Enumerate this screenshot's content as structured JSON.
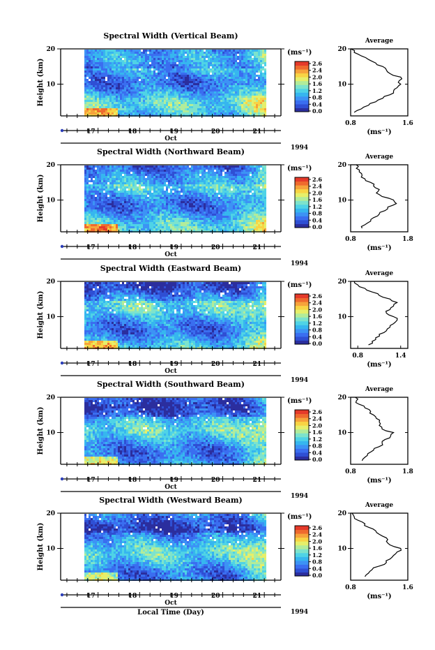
{
  "figure": {
    "xlabel": "Local Time (Day)",
    "date_label": "Oct",
    "year_label": "1994",
    "ylabel": "Height (km)",
    "unit_label": "(ms⁻¹)",
    "profile_title": "Average",
    "profile_xlabel": "(ms⁻¹)"
  },
  "colorbar": {
    "ticks": [
      "2.6",
      "2.4",
      "2.0",
      "1.6",
      "1.2",
      "0.8",
      "0.4",
      "0.0"
    ],
    "colors": [
      "#2b2e9e",
      "#2f4fd4",
      "#3a6ef0",
      "#3c93f5",
      "#36b6ef",
      "#4fd3e6",
      "#7de3cc",
      "#b2ec9a",
      "#e6ef6a",
      "#f8d444",
      "#f6a33b",
      "#ef6a2e",
      "#e53a2a"
    ]
  },
  "chart_data": [
    {
      "type": "heatmap",
      "title": "Spectral Width (Vertical Beam)",
      "x_ticks": [
        "17",
        "18",
        "19",
        "20",
        "21"
      ],
      "x_range_day": [
        16.1,
        21.4
      ],
      "y_ticks": [
        "20",
        "10"
      ],
      "y_range_km": [
        1,
        20
      ],
      "value_range": [
        0.0,
        2.8
      ],
      "profile": {
        "title": "Average",
        "x_ticks": [
          "0.8",
          "1.6"
        ],
        "x_range": [
          0.8,
          1.6
        ],
        "y_ticks": [
          "20",
          "10"
        ],
        "heights_km": [
          2,
          3,
          4,
          5,
          6,
          7,
          8,
          9,
          10,
          11,
          12,
          13,
          14,
          15,
          16,
          17,
          18,
          19,
          20
        ],
        "values": [
          0.85,
          0.95,
          1.05,
          1.15,
          1.25,
          1.35,
          1.4,
          1.45,
          1.5,
          1.48,
          1.5,
          1.35,
          1.3,
          1.25,
          1.15,
          1.05,
          0.95,
          0.85,
          0.8
        ]
      }
    },
    {
      "type": "heatmap",
      "title": "Spectral Width (Northward Beam)",
      "x_ticks": [
        "17",
        "18",
        "19",
        "20",
        "21"
      ],
      "x_range_day": [
        16.1,
        21.4
      ],
      "y_ticks": [
        "20",
        "10"
      ],
      "y_range_km": [
        1,
        20
      ],
      "value_range": [
        0.0,
        2.8
      ],
      "profile": {
        "title": "Average",
        "x_ticks": [
          "0.8",
          "1.8"
        ],
        "x_range": [
          0.8,
          1.8
        ],
        "y_ticks": [
          "20",
          "10"
        ],
        "heights_km": [
          2,
          3,
          4,
          5,
          6,
          7,
          8,
          9,
          10,
          11,
          12,
          13,
          14,
          15,
          16,
          17,
          18,
          19,
          20
        ],
        "values": [
          1.0,
          1.05,
          1.15,
          1.2,
          1.3,
          1.4,
          1.45,
          1.6,
          1.55,
          1.35,
          1.25,
          1.3,
          1.2,
          1.15,
          1.05,
          1.0,
          0.95,
          0.9,
          0.9
        ]
      }
    },
    {
      "type": "heatmap",
      "title": "Spectral Width (Eastward Beam)",
      "x_ticks": [
        "17",
        "18",
        "19",
        "20",
        "21"
      ],
      "x_range_day": [
        16.1,
        21.4
      ],
      "y_ticks": [
        "20",
        "10"
      ],
      "y_range_km": [
        1,
        20
      ],
      "value_range": [
        0.0,
        2.8
      ],
      "profile": {
        "title": "Average",
        "x_ticks": [
          "0.8",
          "1.4"
        ],
        "x_range": [
          0.7,
          1.5
        ],
        "y_ticks": [
          "20",
          "10"
        ],
        "heights_km": [
          2,
          3,
          4,
          5,
          6,
          7,
          8,
          9,
          10,
          11,
          12,
          13,
          14,
          15,
          16,
          17,
          18,
          19,
          20
        ],
        "values": [
          0.95,
          1.0,
          1.05,
          1.1,
          1.2,
          1.25,
          1.3,
          1.35,
          1.3,
          1.2,
          1.25,
          1.3,
          1.35,
          1.25,
          1.1,
          1.0,
          0.9,
          0.8,
          0.75
        ]
      }
    },
    {
      "type": "heatmap",
      "title": "Spectral Width (Southward Beam)",
      "x_ticks": [
        "17",
        "18",
        "19",
        "20",
        "21"
      ],
      "x_range_day": [
        16.1,
        21.4
      ],
      "y_ticks": [
        "20",
        "10"
      ],
      "y_range_km": [
        1,
        20
      ],
      "value_range": [
        0.0,
        2.8
      ],
      "profile": {
        "title": "Average",
        "x_ticks": [
          "0.8",
          "1.8"
        ],
        "x_range": [
          0.8,
          1.8
        ],
        "y_ticks": [
          "20",
          "10"
        ],
        "heights_km": [
          2,
          3,
          4,
          5,
          6,
          7,
          8,
          9,
          10,
          11,
          12,
          13,
          14,
          15,
          16,
          17,
          18,
          19,
          20
        ],
        "values": [
          1.0,
          1.05,
          1.1,
          1.2,
          1.3,
          1.35,
          1.4,
          1.5,
          1.55,
          1.35,
          1.3,
          1.3,
          1.25,
          1.2,
          1.15,
          1.05,
          0.95,
          0.9,
          0.88
        ]
      }
    },
    {
      "type": "heatmap",
      "title": "Spectral Width (Westward Beam)",
      "x_ticks": [
        "17",
        "18",
        "19",
        "20",
        "21"
      ],
      "x_range_day": [
        16.1,
        21.4
      ],
      "y_ticks": [
        "20",
        "10"
      ],
      "y_range_km": [
        1,
        20
      ],
      "value_range": [
        0.0,
        2.8
      ],
      "profile": {
        "title": "Average",
        "x_ticks": [
          "0.8",
          "1.6"
        ],
        "x_range": [
          0.8,
          1.6
        ],
        "y_ticks": [
          "20",
          "10"
        ],
        "heights_km": [
          2,
          3,
          4,
          5,
          6,
          7,
          8,
          9,
          10,
          11,
          12,
          13,
          14,
          15,
          16,
          17,
          18,
          19,
          20
        ],
        "values": [
          1.0,
          1.05,
          1.1,
          1.2,
          1.3,
          1.35,
          1.4,
          1.45,
          1.5,
          1.35,
          1.3,
          1.3,
          1.2,
          1.15,
          1.05,
          1.0,
          0.9,
          0.85,
          0.82
        ]
      }
    }
  ]
}
